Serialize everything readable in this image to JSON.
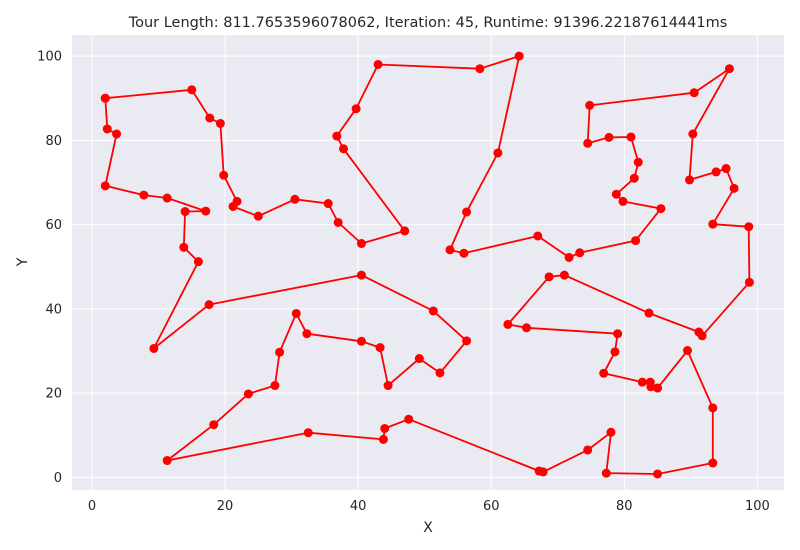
{
  "chart_data": {
    "type": "line",
    "title": "Tour Length: 811.7653596078062, Iteration: 45, Runtime: 91396.22187614441ms",
    "xlabel": "X",
    "ylabel": "Y",
    "xlim": [
      -3,
      104
    ],
    "ylim": [
      -3,
      105
    ],
    "xticks": [
      0,
      20,
      40,
      60,
      80,
      100
    ],
    "yticks": [
      0,
      20,
      40,
      60,
      80,
      100
    ],
    "grid": true,
    "colors": {
      "background": "#eaeaf2",
      "grid": "#ffffff",
      "series": "#ff0000"
    },
    "series": [
      {
        "points": [
          [
            2,
            90
          ],
          [
            15,
            92
          ],
          [
            17.7,
            85.3
          ],
          [
            19.3,
            84
          ],
          [
            19.8,
            71.7
          ],
          [
            21.8,
            65.5
          ],
          [
            21.2,
            64.3
          ],
          [
            25,
            62
          ],
          [
            30.5,
            66
          ],
          [
            35.5,
            65
          ],
          [
            37,
            60.5
          ],
          [
            40.5,
            55.5
          ],
          [
            47,
            58.5
          ],
          [
            37.8,
            78
          ],
          [
            36.8,
            81
          ],
          [
            39.7,
            87.5
          ],
          [
            43,
            98
          ],
          [
            58.3,
            97
          ],
          [
            64.2,
            100
          ],
          [
            61,
            77
          ],
          [
            56.3,
            63
          ],
          [
            53.8,
            54
          ],
          [
            55.9,
            53.2
          ],
          [
            67,
            57.3
          ],
          [
            71.7,
            52.2
          ],
          [
            73.3,
            53.3
          ],
          [
            81.7,
            56.2
          ],
          [
            85.5,
            63.8
          ],
          [
            79.8,
            65.5
          ],
          [
            78.8,
            67.2
          ],
          [
            81.5,
            71
          ],
          [
            82.1,
            74.8
          ],
          [
            81,
            80.8
          ],
          [
            77.7,
            80.7
          ],
          [
            74.5,
            79.3
          ],
          [
            74.8,
            88.3
          ],
          [
            90.5,
            91.3
          ],
          [
            95.8,
            97
          ],
          [
            90.3,
            81.5
          ],
          [
            89.8,
            70.6
          ],
          [
            93.8,
            72.5
          ],
          [
            95.3,
            73.3
          ],
          [
            96.5,
            68.6
          ],
          [
            93.3,
            60.1
          ],
          [
            98.7,
            59.5
          ],
          [
            98.8,
            46.3
          ],
          [
            91.7,
            33.6
          ],
          [
            91.2,
            34.5
          ],
          [
            83.7,
            39
          ],
          [
            71,
            48
          ],
          [
            68.7,
            47.6
          ],
          [
            62.5,
            36.3
          ],
          [
            65.3,
            35.5
          ],
          [
            79,
            34.1
          ],
          [
            78.6,
            29.8
          ],
          [
            76.9,
            24.7
          ],
          [
            82.7,
            22.6
          ],
          [
            83.9,
            22.6
          ],
          [
            84,
            21.5
          ],
          [
            85,
            21.2
          ],
          [
            89.5,
            30.1
          ],
          [
            93.3,
            16.5
          ],
          [
            93.3,
            3.4
          ],
          [
            85,
            0.8
          ],
          [
            77.3,
            1
          ],
          [
            78,
            10.7
          ],
          [
            74.5,
            6.5
          ],
          [
            67.8,
            1.3
          ],
          [
            67.2,
            1.5
          ],
          [
            47.6,
            13.8
          ],
          [
            44,
            11.6
          ],
          [
            43.8,
            9
          ],
          [
            32.5,
            10.6
          ],
          [
            11.3,
            4
          ],
          [
            18.3,
            12.5
          ],
          [
            23.5,
            19.8
          ],
          [
            27.5,
            21.8
          ],
          [
            28.2,
            29.7
          ],
          [
            30.7,
            38.9
          ],
          [
            32.3,
            34.1
          ],
          [
            40.5,
            32.3
          ],
          [
            43.3,
            30.8
          ],
          [
            44.5,
            21.8
          ],
          [
            49.2,
            28.2
          ],
          [
            52.3,
            24.8
          ],
          [
            56.3,
            32.4
          ],
          [
            51.3,
            39.5
          ],
          [
            40.5,
            48
          ],
          [
            17.6,
            41
          ],
          [
            9.3,
            30.6
          ],
          [
            16,
            51.2
          ],
          [
            13.8,
            54.6
          ],
          [
            14,
            63.1
          ],
          [
            17.1,
            63.2
          ],
          [
            11.3,
            66.3
          ],
          [
            7.8,
            67
          ],
          [
            2,
            69.2
          ],
          [
            3.7,
            81.5
          ],
          [
            2.3,
            82.7
          ],
          [
            2,
            90
          ]
        ]
      }
    ]
  }
}
